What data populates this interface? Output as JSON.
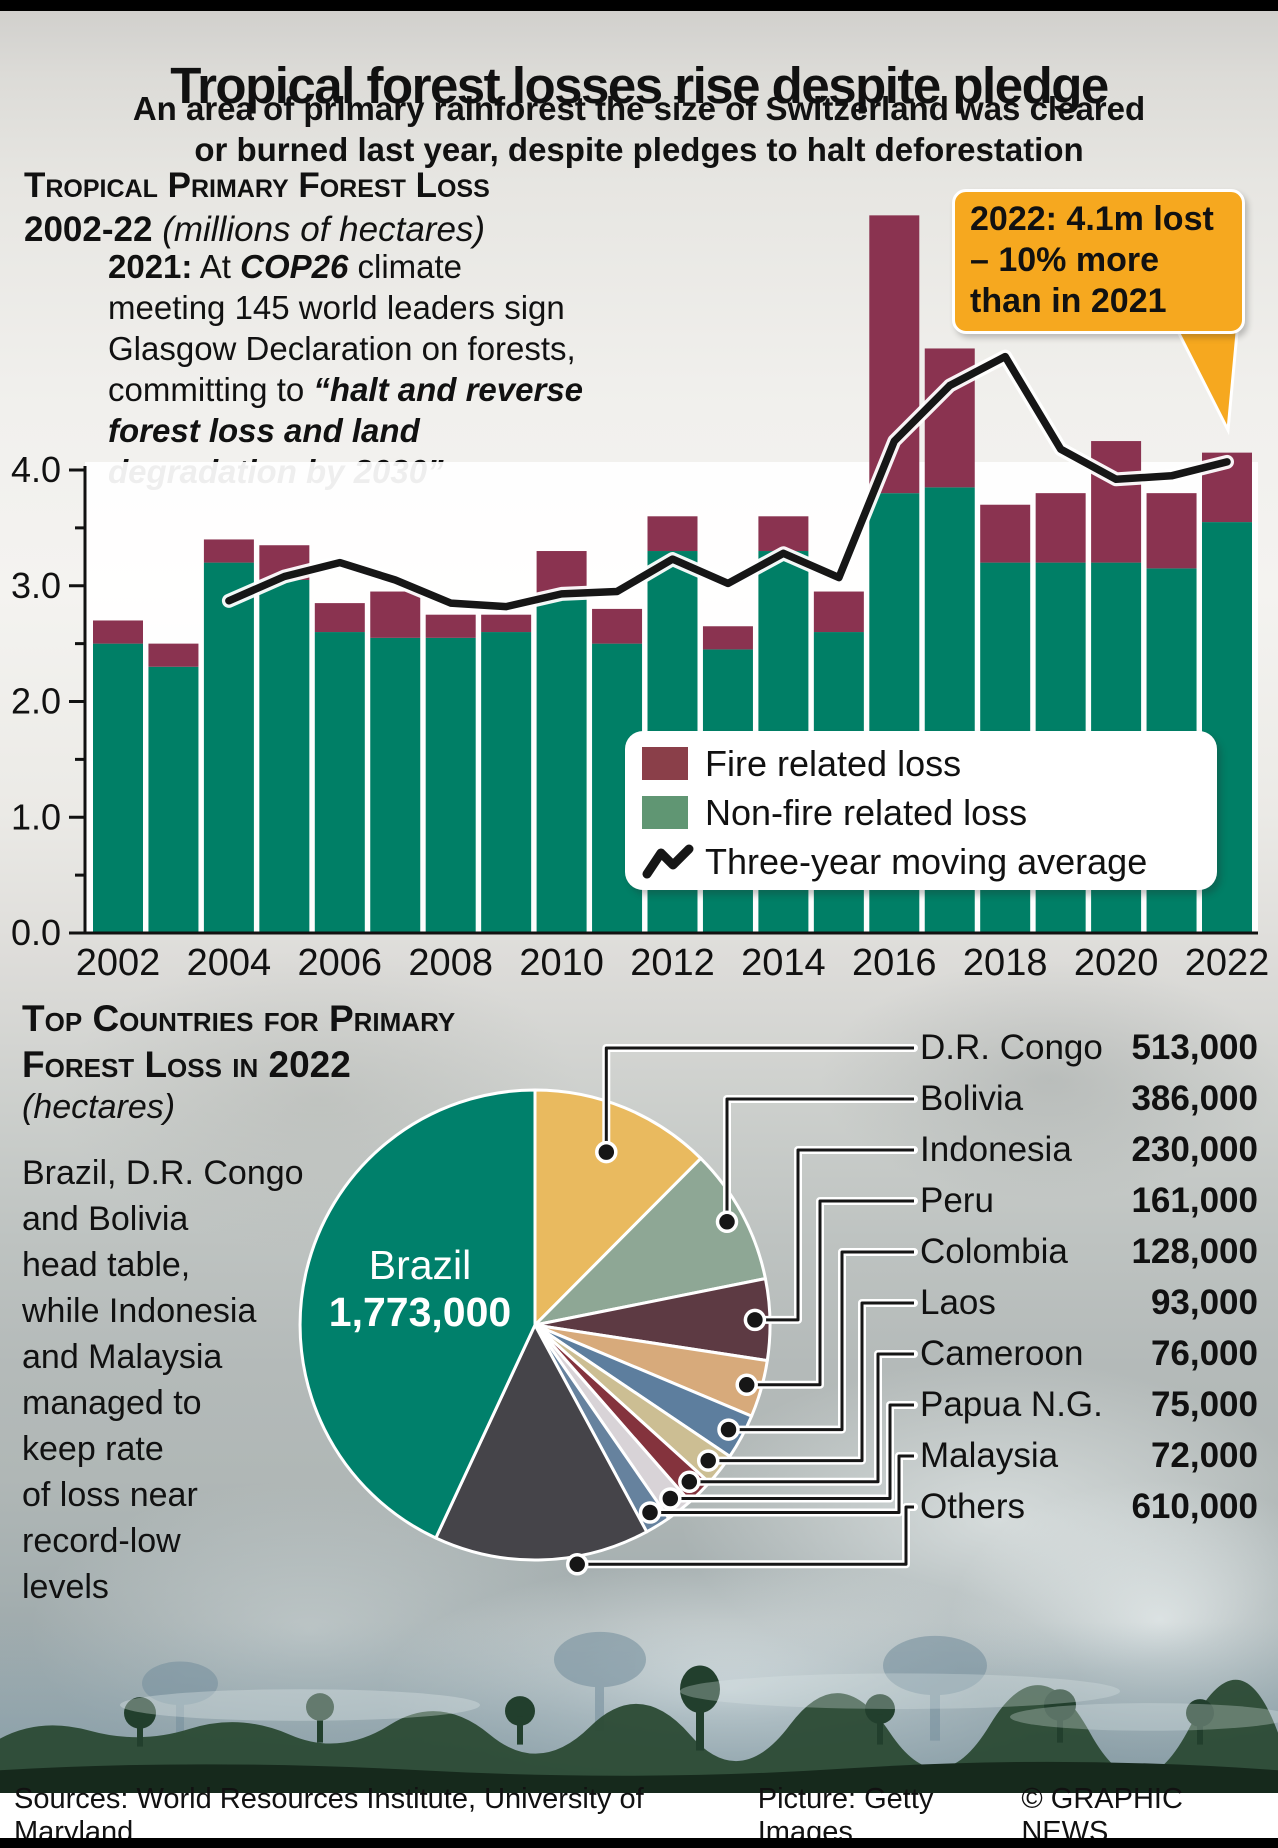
{
  "header": {
    "title": "Tropical forest losses rise despite pledge",
    "subtitle_lines": [
      "An area of primary rainforest the size of Switzerland was cleared",
      "or burned last year, despite pledges to halt deforestation"
    ]
  },
  "bar_section": {
    "heading_line1": "Tropical Primary Forest Loss",
    "heading_line2_bold": "2002-22",
    "heading_line2_italic": "(millions of hectares)",
    "annotation": {
      "year_bold": "2021:",
      "mid1": " At ",
      "cop_bolditalic": "COP26",
      "mid2": " climate meeting 145 world leaders sign Glasgow Declaration on forests, committing to ",
      "quote_bolditalic": "“halt and reverse forest loss and land degradation by 2030”"
    },
    "callout": {
      "lines": [
        "2022: 4.1m lost",
        "– 10% more",
        "than in 2021"
      ]
    },
    "legend": {
      "fire_label": "Fire related loss",
      "nonfire_label": "Non-fire related loss",
      "avg_label": "Three-year moving average"
    }
  },
  "pie_section": {
    "heading_line1": "Top Countries for Primary",
    "heading_line2": "Forest Loss in 2022",
    "heading_unit_italic": "(hectares)",
    "body_lines": [
      "Brazil, D.R. Congo",
      "and Bolivia",
      "head table,",
      "while Indonesia",
      "and Malaysia",
      "managed to",
      "keep rate",
      "of loss near",
      "record-low",
      "levels"
    ],
    "brazil_label": {
      "name": "Brazil",
      "value": "1,773,000"
    },
    "countries": [
      {
        "name": "D.R. Congo",
        "value": "513,000"
      },
      {
        "name": "Bolivia",
        "value": "386,000"
      },
      {
        "name": "Indonesia",
        "value": "230,000"
      },
      {
        "name": "Peru",
        "value": "161,000"
      },
      {
        "name": "Colombia",
        "value": "128,000"
      },
      {
        "name": "Laos",
        "value": "93,000"
      },
      {
        "name": "Cameroon",
        "value": "76,000"
      },
      {
        "name": "Papua N.G.",
        "value": "75,000"
      },
      {
        "name": "Malaysia",
        "value": "72,000"
      },
      {
        "name": "Others",
        "value": "610,000"
      }
    ]
  },
  "footer": {
    "sources": "Sources: World Resources Institute, University of Maryland",
    "picture": "Picture: Getty Images",
    "copyright": "© GRAPHIC NEWS"
  },
  "colors": {
    "fire": "#8a3350",
    "nonfire": "#007f66",
    "legend_fire": "#8a3f49",
    "legend_nonfire": "#609673",
    "avg_line": "#161616",
    "callout_bg": "#f6a81f",
    "pie": {
      "Brazil": "#00806b",
      "D.R. Congo": "#e9ba5f",
      "Bolivia": "#8ea795",
      "Indonesia": "#5d3a43",
      "Peru": "#d7aa7b",
      "Colombia": "#5d7e9e",
      "Laos": "#ccbe93",
      "Cameroon": "#84333d",
      "Papua N.G.": "#d8d3d7",
      "Malaysia": "#66829e",
      "Others": "#454449"
    }
  },
  "chart_data": [
    {
      "type": "bar",
      "stacked": true,
      "title": "Tropical Primary Forest Loss 2002-22",
      "unit": "millions of hectares",
      "categories": [
        2002,
        2003,
        2004,
        2005,
        2006,
        2007,
        2008,
        2009,
        2010,
        2011,
        2012,
        2013,
        2014,
        2015,
        2016,
        2017,
        2018,
        2019,
        2020,
        2021,
        2022
      ],
      "series": [
        {
          "name": "Non-fire related loss",
          "color_key": "nonfire",
          "values": [
            2.5,
            2.3,
            3.2,
            3.05,
            2.6,
            2.55,
            2.55,
            2.6,
            2.9,
            2.5,
            3.3,
            2.45,
            3.3,
            2.6,
            3.8,
            3.85,
            3.2,
            3.2,
            3.2,
            3.15,
            3.55
          ]
        },
        {
          "name": "Fire related loss",
          "color_key": "fire",
          "values": [
            0.2,
            0.2,
            0.2,
            0.3,
            0.25,
            0.4,
            0.2,
            0.15,
            0.4,
            0.3,
            0.3,
            0.2,
            0.3,
            0.35,
            2.4,
            1.2,
            0.5,
            0.6,
            1.05,
            0.65,
            0.6
          ]
        }
      ],
      "line_series": {
        "name": "Three-year moving average",
        "start_category": 2004,
        "values": [
          2.87,
          3.08,
          3.2,
          3.05,
          2.85,
          2.82,
          2.93,
          2.95,
          3.23,
          3.02,
          3.28,
          3.07,
          4.25,
          4.73,
          4.98,
          4.18,
          3.92,
          3.95,
          4.07
        ]
      },
      "ylim": [
        0,
        4.0
      ],
      "yticks": [
        0.0,
        1.0,
        2.0,
        3.0,
        4.0
      ],
      "xtick_labels": [
        2002,
        2004,
        2006,
        2008,
        2010,
        2012,
        2014,
        2016,
        2018,
        2020,
        2022
      ],
      "legend_position": "inside bottom right",
      "grid": false
    },
    {
      "type": "pie",
      "title": "Top countries for primary forest loss in 2022",
      "unit": "hectares",
      "labels": [
        "Brazil",
        "D.R. Congo",
        "Bolivia",
        "Indonesia",
        "Peru",
        "Colombia",
        "Laos",
        "Cameroon",
        "Papua N.G.",
        "Malaysia",
        "Others"
      ],
      "values": [
        1773000,
        513000,
        386000,
        230000,
        161000,
        128000,
        93000,
        76000,
        75000,
        72000,
        610000
      ]
    }
  ]
}
